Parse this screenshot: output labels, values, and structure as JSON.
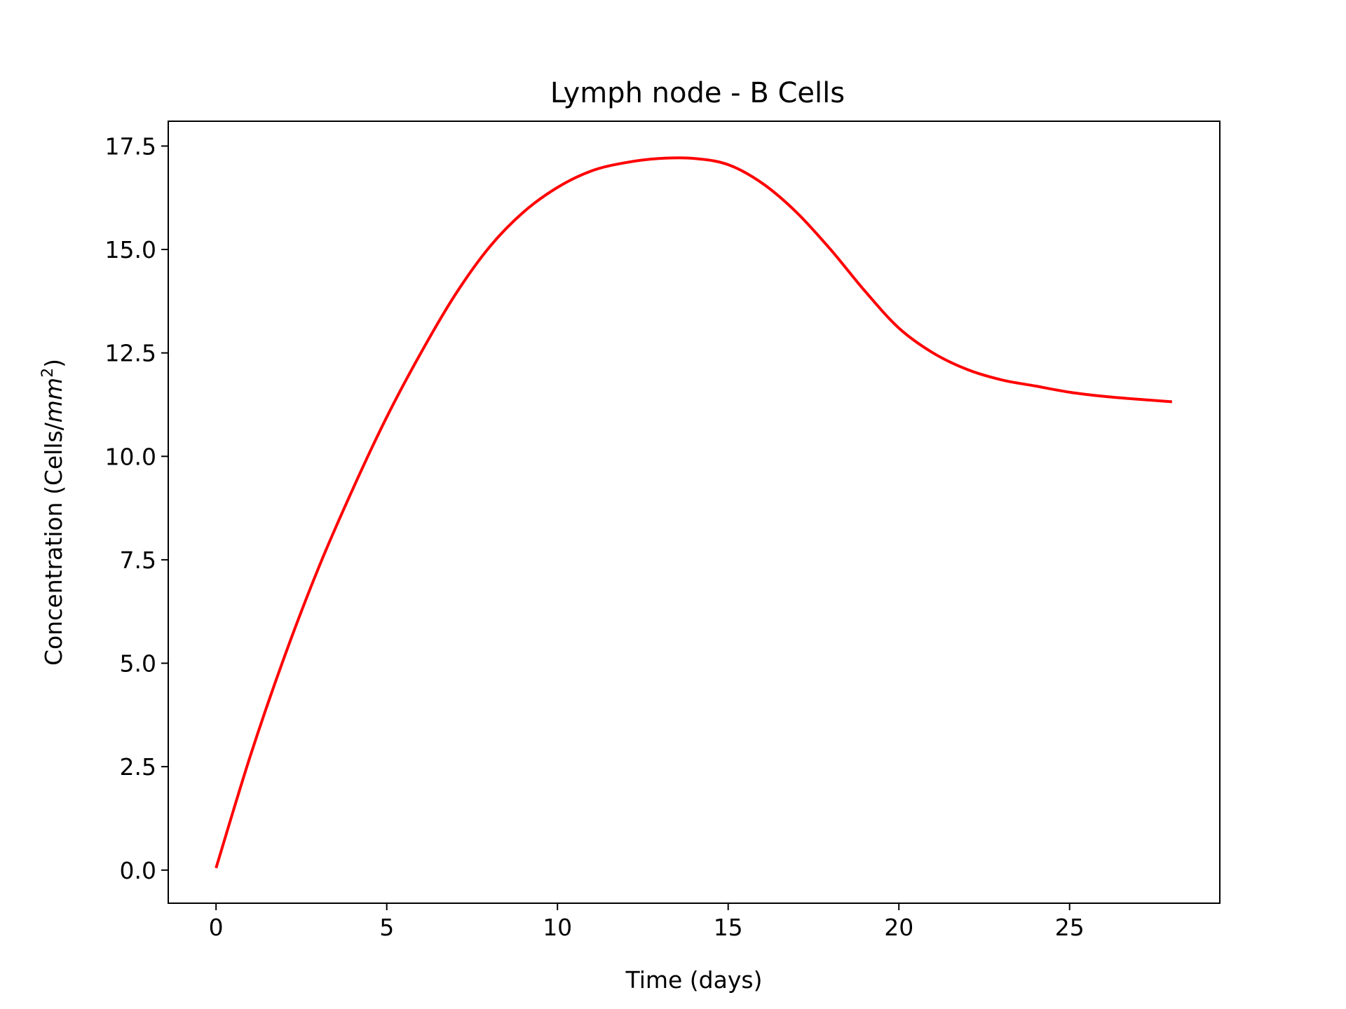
{
  "chart_data": {
    "type": "line",
    "title": "Lymph node - B Cells",
    "xlabel": "Time (days)",
    "ylabel_main": "Concentration (Cells/",
    "ylabel_italic": "mm",
    "ylabel_sup": "2",
    "ylabel_close": ")",
    "xlim": [
      -1.4,
      29.4
    ],
    "ylim": [
      -0.8,
      18.1
    ],
    "x_ticks": [
      0,
      5,
      10,
      15,
      20,
      25
    ],
    "x_tick_labels": [
      "0",
      "5",
      "10",
      "15",
      "20",
      "25"
    ],
    "y_ticks": [
      0,
      2.5,
      5,
      7.5,
      10,
      12.5,
      15,
      17.5
    ],
    "y_tick_labels": [
      "0.0",
      "2.5",
      "5.0",
      "7.5",
      "10.0",
      "12.5",
      "15.0",
      "17.5"
    ],
    "grid": false,
    "series": [
      {
        "color": "#ff0000",
        "x": [
          0,
          1,
          2,
          3,
          4,
          5,
          6,
          7,
          8,
          9,
          10,
          11,
          12,
          13,
          14,
          15,
          16,
          17,
          18,
          19,
          20,
          21,
          22,
          23,
          24,
          25,
          26,
          27,
          28
        ],
        "y": [
          0.05,
          2.75,
          5.15,
          7.3,
          9.2,
          10.95,
          12.5,
          13.9,
          15.05,
          15.9,
          16.5,
          16.9,
          17.1,
          17.2,
          17.2,
          17.05,
          16.6,
          15.9,
          15.0,
          14.0,
          13.1,
          12.5,
          12.1,
          11.85,
          11.7,
          11.55,
          11.45,
          11.38,
          11.32
        ]
      }
    ]
  }
}
